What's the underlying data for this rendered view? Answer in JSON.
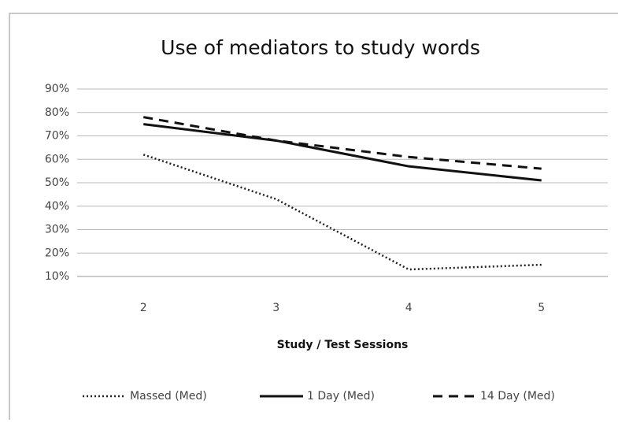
{
  "chart_data": {
    "type": "line",
    "title": "Use of mediators to study words",
    "x_label": "Study / Test Sessions",
    "categories": [
      "2",
      "3",
      "4",
      "5"
    ],
    "series": [
      {
        "name": "Massed (Med)",
        "color": "#222222",
        "line_style": "dotted",
        "values": [
          62,
          43,
          13,
          15
        ]
      },
      {
        "name": "1 Day (Med)",
        "color": "#111111",
        "line_style": "solid",
        "values": [
          75,
          68,
          57,
          51
        ]
      },
      {
        "name": "14 Day (Med)",
        "color": "#111111",
        "line_style": "dashed",
        "values": [
          78,
          68,
          61,
          56
        ]
      }
    ],
    "ylim": [
      10,
      90
    ],
    "yticks": [
      {
        "value": 10,
        "label": "10%"
      },
      {
        "value": 20,
        "label": "20%"
      },
      {
        "value": 30,
        "label": "30%"
      },
      {
        "value": 40,
        "label": "40%"
      },
      {
        "value": 50,
        "label": "50%"
      },
      {
        "value": 60,
        "label": "60%"
      },
      {
        "value": 70,
        "label": "70%"
      },
      {
        "value": 80,
        "label": "80%"
      },
      {
        "value": 90,
        "label": "90%"
      }
    ],
    "grid": true,
    "legend": "bottom"
  }
}
